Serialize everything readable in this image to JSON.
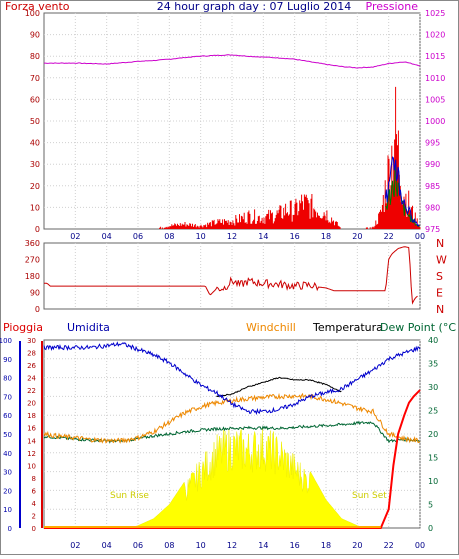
{
  "colors": {
    "wind": "#ee0000",
    "wind_gust": "#007700",
    "wind_avg": "#0000cc",
    "pressure": "#cc00cc",
    "direction": "#cc0000",
    "rain": "#ff0000",
    "humidity": "#0000cc",
    "windchill": "#ee8800",
    "temperature": "#000000",
    "dewpoint": "#006633",
    "solar": "#ffff00",
    "grid": "#d0d0d0",
    "frame": "#666666"
  },
  "chart_data": [
    {
      "type": "line",
      "title": "24 hour graph day : 07 Luglio 2014",
      "y_left_label": "Forza vento",
      "y_right_label": "Pressione",
      "x_ticks": [
        "02",
        "04",
        "06",
        "08",
        "10",
        "12",
        "14",
        "16",
        "18",
        "20",
        "22",
        "00"
      ],
      "y_left_ticks": [
        "0",
        "10",
        "20",
        "30",
        "40",
        "50",
        "60",
        "70",
        "80",
        "90",
        "100"
      ],
      "y_right_ticks": [
        "975",
        "980",
        "985",
        "990",
        "995",
        "1000",
        "1005",
        "1010",
        "1015",
        "1020",
        "1025"
      ],
      "y_left_range": [
        0,
        100
      ],
      "y_right_range": [
        975,
        1025
      ],
      "series": [
        {
          "name": "Pressione",
          "axis": "right",
          "x": [
            0,
            1,
            2,
            3,
            4,
            5,
            6,
            7,
            8,
            9,
            10,
            11,
            12,
            13,
            14,
            15,
            16,
            17,
            18,
            19,
            20,
            21,
            22,
            23,
            24
          ],
          "values": [
            1013.4,
            1013.4,
            1013.4,
            1013.3,
            1013.2,
            1013.5,
            1013.8,
            1014.0,
            1014.3,
            1014.7,
            1015.0,
            1015.2,
            1015.3,
            1015.0,
            1014.8,
            1014.6,
            1014.3,
            1013.7,
            1013.1,
            1012.6,
            1012.3,
            1012.5,
            1013.3,
            1013.7,
            1012.8
          ]
        },
        {
          "name": "Forza vento",
          "axis": "left",
          "x": [
            0,
            2,
            4,
            6,
            7,
            8,
            9,
            10,
            11,
            12,
            12.5,
            13,
            14,
            15,
            15.5,
            16,
            16.5,
            17,
            17.5,
            18,
            19,
            20,
            21,
            21.5,
            22,
            22.2,
            22.4,
            22.6,
            22.8,
            23,
            23.3,
            23.6,
            24
          ],
          "values": [
            0,
            0,
            0,
            0,
            0,
            2,
            3,
            2,
            4,
            5,
            6,
            8,
            7,
            9,
            12,
            11,
            16,
            14,
            12,
            10,
            0,
            0,
            1,
            9,
            35,
            45,
            62,
            48,
            30,
            22,
            15,
            8,
            2
          ]
        }
      ]
    },
    {
      "type": "line",
      "y_right_ticks": [
        "N",
        "W",
        "S",
        "E",
        "N"
      ],
      "y_left_ticks": [
        "0",
        "90",
        "180",
        "270",
        "360"
      ],
      "y_range": [
        0,
        360
      ],
      "series": [
        {
          "name": "direction",
          "x": [
            0,
            0.2,
            0.4,
            5,
            8,
            10.3,
            10.6,
            11,
            11.5,
            12,
            12.5,
            13,
            14,
            15,
            16,
            17,
            17.5,
            18,
            18.5,
            19,
            20,
            21,
            21.8,
            22,
            22.2,
            22.6,
            23,
            23.3,
            23.5,
            23.7,
            23.9
          ],
          "values": [
            140,
            140,
            125,
            125,
            125,
            125,
            75,
            110,
            115,
            155,
            130,
            150,
            140,
            135,
            125,
            130,
            120,
            115,
            100,
            100,
            100,
            100,
            100,
            270,
            300,
            330,
            340,
            335,
            30,
            60,
            75
          ]
        }
      ]
    },
    {
      "type": "line",
      "legend": [
        "Pioggia",
        "Umidita",
        "Windchill",
        "Temperatura",
        "Dew Point (°C"
      ],
      "annotations": [
        "Sun Rise",
        "Sun Set"
      ],
      "x_ticks": [
        "02",
        "04",
        "06",
        "08",
        "10",
        "12",
        "14",
        "16",
        "18",
        "20",
        "22",
        "00"
      ],
      "y_hum_ticks": [
        "0",
        "10",
        "20",
        "30",
        "40",
        "50",
        "60",
        "70",
        "80",
        "90",
        "100"
      ],
      "y_rain_ticks": [
        "0",
        "2",
        "4",
        "6",
        "8",
        "10",
        "12",
        "14",
        "16",
        "18",
        "20",
        "22",
        "24",
        "26",
        "28",
        "30"
      ],
      "y_temp_ticks": [
        "0",
        "5",
        "10",
        "15",
        "20",
        "25",
        "30",
        "35",
        "40"
      ],
      "series": [
        {
          "name": "Umidita",
          "axis": "hum",
          "x": [
            0,
            1,
            2,
            3,
            4,
            5,
            6,
            7,
            8,
            9,
            10,
            11,
            12,
            13,
            14,
            15,
            16,
            17,
            18,
            19,
            20,
            21,
            22,
            23,
            24
          ],
          "values": [
            96,
            96,
            96,
            96,
            97,
            98,
            95,
            92,
            88,
            82,
            76,
            72,
            66,
            62,
            62,
            63,
            66,
            70,
            72,
            74,
            79,
            84,
            90,
            93,
            96
          ]
        },
        {
          "name": "Windchill",
          "axis": "temp",
          "x": [
            11,
            12,
            13,
            14,
            15,
            16,
            17,
            18,
            19
          ],
          "values": [
            28,
            28.5,
            30,
            31,
            32,
            31.5,
            31.5,
            30.5,
            29
          ]
        },
        {
          "name": "Temperatura",
          "axis": "temp",
          "x": [
            0,
            1,
            2,
            3,
            4,
            5,
            6,
            7,
            8,
            9,
            10,
            11,
            12,
            13,
            14,
            15,
            16,
            17,
            18,
            19,
            20,
            21,
            22,
            23,
            24
          ],
          "values": [
            20,
            19.5,
            19.2,
            18.8,
            18.6,
            18.6,
            19.2,
            20.5,
            22.5,
            24.5,
            25.8,
            26.6,
            27.1,
            27.5,
            27.8,
            28.0,
            28.1,
            28.0,
            27.4,
            26.5,
            25.5,
            24.8,
            20,
            19,
            18.5
          ]
        },
        {
          "name": "Dew Point (°C",
          "axis": "temp",
          "x": [
            0,
            1,
            2,
            3,
            4,
            5,
            6,
            7,
            8,
            9,
            10,
            11,
            12,
            13,
            14,
            15,
            16,
            17,
            18,
            19,
            20,
            21,
            22,
            23,
            24
          ],
          "values": [
            19.5,
            19.2,
            18.9,
            18.7,
            18.5,
            18.5,
            19.0,
            19.6,
            20.0,
            20.5,
            20.8,
            21.1,
            21.2,
            21.3,
            21.3,
            21.2,
            21.4,
            21.6,
            21.8,
            22.0,
            22.3,
            22.5,
            18.5,
            18.8,
            18.6
          ]
        },
        {
          "name": "Pioggia",
          "axis": "rain",
          "x": [
            0,
            21.5,
            22.0,
            22.3,
            22.6,
            23,
            23.3,
            23.6,
            24
          ],
          "values": [
            0,
            0,
            3,
            10,
            15,
            18,
            20,
            21,
            22
          ]
        },
        {
          "name": "solar",
          "axis": "temp",
          "x": [
            5.5,
            6,
            7,
            8,
            9,
            10,
            11,
            12,
            13,
            14,
            15,
            16,
            17,
            18,
            19,
            20,
            20.5
          ],
          "values": [
            0,
            0.5,
            2,
            5,
            10,
            15,
            20,
            22,
            21,
            22,
            20,
            16,
            12,
            6,
            2,
            0.5,
            0
          ]
        }
      ]
    }
  ]
}
